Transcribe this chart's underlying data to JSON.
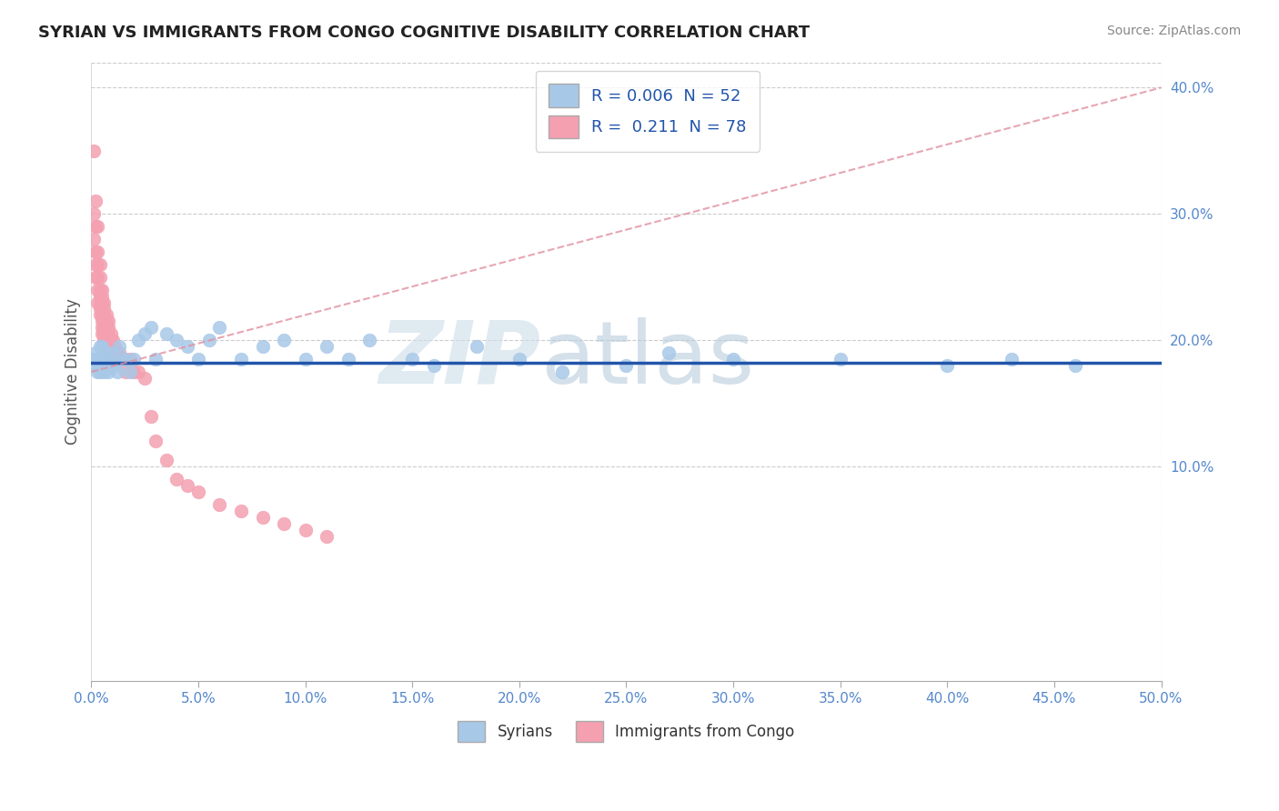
{
  "title": "SYRIAN VS IMMIGRANTS FROM CONGO COGNITIVE DISABILITY CORRELATION CHART",
  "source": "Source: ZipAtlas.com",
  "xlabel_syrians": "Syrians",
  "xlabel_congo": "Immigrants from Congo",
  "ylabel": "Cognitive Disability",
  "xlim": [
    0.0,
    0.5
  ],
  "ylim": [
    -0.07,
    0.42
  ],
  "xticks": [
    0.0,
    0.05,
    0.1,
    0.15,
    0.2,
    0.25,
    0.3,
    0.35,
    0.4,
    0.45,
    0.5
  ],
  "yticks": [
    0.1,
    0.2,
    0.3,
    0.4
  ],
  "R_syrians": 0.006,
  "N_syrians": 52,
  "R_congo": 0.211,
  "N_congo": 78,
  "color_syrians": "#a8c8e8",
  "color_congo": "#f4a0b0",
  "trendline_syrians_color": "#2255aa",
  "trendline_congo_color": "#e090a0",
  "trendline_congo_dashed": true,
  "grid_color": "#cccccc",
  "background_color": "#ffffff",
  "syrians_x": [
    0.001,
    0.002,
    0.002,
    0.003,
    0.003,
    0.004,
    0.004,
    0.005,
    0.005,
    0.006,
    0.006,
    0.007,
    0.007,
    0.008,
    0.009,
    0.01,
    0.011,
    0.012,
    0.013,
    0.015,
    0.016,
    0.018,
    0.02,
    0.022,
    0.025,
    0.028,
    0.03,
    0.035,
    0.04,
    0.045,
    0.05,
    0.055,
    0.06,
    0.07,
    0.08,
    0.09,
    0.1,
    0.11,
    0.12,
    0.13,
    0.15,
    0.16,
    0.18,
    0.2,
    0.22,
    0.25,
    0.27,
    0.3,
    0.35,
    0.4,
    0.43,
    0.46
  ],
  "syrians_y": [
    0.185,
    0.19,
    0.18,
    0.175,
    0.185,
    0.195,
    0.175,
    0.185,
    0.195,
    0.18,
    0.175,
    0.185,
    0.19,
    0.175,
    0.185,
    0.19,
    0.18,
    0.175,
    0.195,
    0.185,
    0.185,
    0.175,
    0.185,
    0.2,
    0.205,
    0.21,
    0.185,
    0.205,
    0.2,
    0.195,
    0.185,
    0.2,
    0.21,
    0.185,
    0.195,
    0.2,
    0.185,
    0.195,
    0.185,
    0.2,
    0.185,
    0.18,
    0.195,
    0.185,
    0.175,
    0.18,
    0.19,
    0.185,
    0.185,
    0.18,
    0.185,
    0.18
  ],
  "congo_x": [
    0.001,
    0.001,
    0.001,
    0.002,
    0.002,
    0.002,
    0.002,
    0.002,
    0.003,
    0.003,
    0.003,
    0.003,
    0.003,
    0.003,
    0.004,
    0.004,
    0.004,
    0.004,
    0.004,
    0.004,
    0.004,
    0.005,
    0.005,
    0.005,
    0.005,
    0.005,
    0.005,
    0.005,
    0.005,
    0.006,
    0.006,
    0.006,
    0.006,
    0.006,
    0.006,
    0.006,
    0.007,
    0.007,
    0.007,
    0.007,
    0.007,
    0.007,
    0.008,
    0.008,
    0.008,
    0.008,
    0.008,
    0.008,
    0.009,
    0.009,
    0.009,
    0.01,
    0.01,
    0.01,
    0.01,
    0.011,
    0.011,
    0.012,
    0.013,
    0.014,
    0.015,
    0.016,
    0.018,
    0.02,
    0.022,
    0.025,
    0.028,
    0.03,
    0.035,
    0.04,
    0.045,
    0.05,
    0.06,
    0.07,
    0.08,
    0.09,
    0.1,
    0.11
  ],
  "congo_y": [
    0.35,
    0.3,
    0.28,
    0.31,
    0.29,
    0.27,
    0.26,
    0.25,
    0.29,
    0.27,
    0.26,
    0.25,
    0.24,
    0.23,
    0.26,
    0.25,
    0.24,
    0.235,
    0.23,
    0.225,
    0.22,
    0.24,
    0.235,
    0.23,
    0.225,
    0.22,
    0.215,
    0.21,
    0.205,
    0.23,
    0.225,
    0.22,
    0.215,
    0.21,
    0.205,
    0.2,
    0.22,
    0.215,
    0.21,
    0.205,
    0.2,
    0.195,
    0.215,
    0.21,
    0.205,
    0.2,
    0.195,
    0.19,
    0.205,
    0.2,
    0.195,
    0.2,
    0.195,
    0.19,
    0.185,
    0.195,
    0.19,
    0.185,
    0.19,
    0.185,
    0.185,
    0.175,
    0.185,
    0.175,
    0.175,
    0.17,
    0.14,
    0.12,
    0.105,
    0.09,
    0.085,
    0.08,
    0.07,
    0.065,
    0.06,
    0.055,
    0.05,
    0.045
  ],
  "syrians_trendline_y_start": 0.182,
  "syrians_trendline_y_end": 0.182,
  "congo_trendline_x_start": 0.0,
  "congo_trendline_y_start": 0.175,
  "congo_trendline_x_end": 0.5,
  "congo_trendline_y_end": 0.4
}
